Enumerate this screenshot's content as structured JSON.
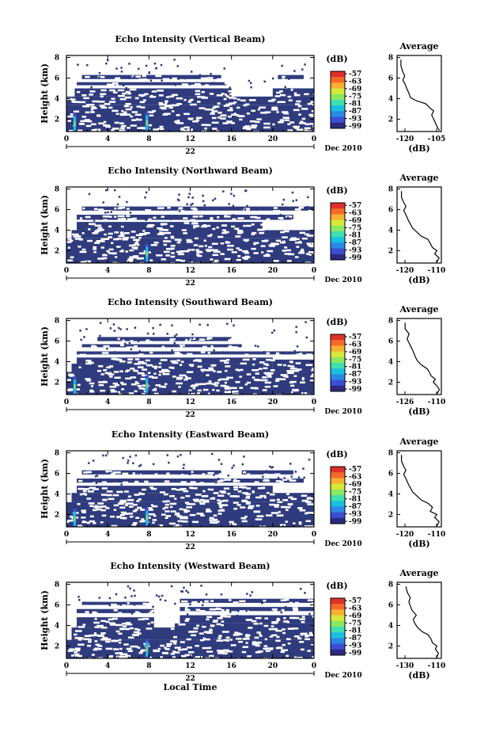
{
  "colors": {
    "echo_fill": "#2f3b7d",
    "colorbar": [
      "#2c2a7f",
      "#3b4fd1",
      "#2a88e8",
      "#18c0e0",
      "#3fe0b0",
      "#8be860",
      "#d8e83a",
      "#f8b030",
      "#f66a2a",
      "#e0302a"
    ]
  },
  "colorbar_unit": "(dB)",
  "colorbar_ticks": [
    "-57",
    "-63",
    "-69",
    "-75",
    "-81",
    "-87",
    "-93",
    "-99"
  ],
  "avg_title": "Average",
  "avg_unit": "(dB)",
  "height_label": "Height (km)",
  "date_label": "Dec 2010",
  "day_label": "22",
  "local_time_label": "Local Time",
  "chart_data": [
    {
      "type": "heatmap",
      "title": "Echo Intensity (Vertical Beam)",
      "ylabel": "Height (km)",
      "xlabel": "",
      "x_ticks": [
        "0",
        "4",
        "8",
        "12",
        "16",
        "20",
        "0"
      ],
      "xlim": [
        0,
        24
      ],
      "y_ticks": [
        "2",
        "4",
        "6",
        "8"
      ],
      "ylim": [
        0.8,
        8.2
      ],
      "grid": false,
      "layers": [
        {
          "t0": 0.0,
          "t1": 24.0,
          "h0": 0.8,
          "h1": 3.4
        },
        {
          "t0": 0.0,
          "t1": 24.0,
          "h0": 3.4,
          "h1": 4.2
        },
        {
          "t0": 0.8,
          "t1": 16.0,
          "h0": 4.2,
          "h1": 5.0
        },
        {
          "t0": 20.0,
          "t1": 24.0,
          "h0": 4.2,
          "h1": 5.0
        },
        {
          "t0": 1.0,
          "t1": 15.5,
          "h0": 5.3,
          "h1": 5.6
        },
        {
          "t0": 1.5,
          "t1": 15.0,
          "h0": 5.9,
          "h1": 6.3
        },
        {
          "t0": 20.5,
          "t1": 23.0,
          "h0": 5.9,
          "h1": 6.3
        }
      ],
      "hotspots": [
        {
          "t": 0.8,
          "h": 1.5
        },
        {
          "t": 7.8,
          "h": 1.6
        }
      ],
      "average": {
        "xlabel": "(dB)",
        "x_ticks": [
          "-120",
          "-105"
        ],
        "xlim": [
          -125,
          -102
        ],
        "y_ticks": [
          "2",
          "4",
          "6",
          "8"
        ],
        "ylim": [
          0.8,
          8.2
        ],
        "profile_x": [
          -103,
          -104,
          -105,
          -106,
          -107,
          -106,
          -108,
          -110,
          -115,
          -118,
          -119,
          -120,
          -121,
          -122,
          -121,
          -122,
          -123,
          -123
        ],
        "profile_y": [
          0.9,
          1.2,
          1.6,
          2.0,
          2.4,
          2.8,
          3.1,
          3.5,
          3.8,
          4.1,
          4.6,
          5.0,
          5.5,
          5.8,
          6.2,
          6.6,
          7.2,
          7.8
        ]
      }
    },
    {
      "type": "heatmap",
      "title": "Echo Intensity (Northward Beam)",
      "ylabel": "Height (km)",
      "xlabel": "",
      "x_ticks": [
        "0",
        "4",
        "8",
        "12",
        "16",
        "20",
        "0"
      ],
      "xlim": [
        0,
        24
      ],
      "y_ticks": [
        "2",
        "4",
        "6",
        "8"
      ],
      "ylim": [
        0.8,
        8.2
      ],
      "grid": false,
      "layers": [
        {
          "t0": 0.0,
          "t1": 24.0,
          "h0": 0.8,
          "h1": 3.2
        },
        {
          "t0": 0.5,
          "t1": 24.0,
          "h0": 3.2,
          "h1": 4.0
        },
        {
          "t0": 1.0,
          "t1": 19.0,
          "h0": 4.0,
          "h1": 4.8
        },
        {
          "t0": 1.0,
          "t1": 22.0,
          "h0": 5.0,
          "h1": 5.5
        },
        {
          "t0": 1.5,
          "t1": 24.0,
          "h0": 5.9,
          "h1": 6.3
        }
      ],
      "hotspots": [
        {
          "t": 7.8,
          "h": 1.6
        }
      ],
      "average": {
        "xlabel": "(dB)",
        "x_ticks": [
          "-120",
          "-110"
        ],
        "xlim": [
          -123,
          -103
        ],
        "y_ticks": [
          "2",
          "4",
          "6",
          "8"
        ],
        "ylim": [
          0.8,
          8.2
        ],
        "profile_x": [
          -105,
          -104,
          -106,
          -105,
          -107,
          -108,
          -109,
          -112,
          -114,
          -116,
          -117,
          -118,
          -119,
          -120,
          -119,
          -120,
          -121,
          -121
        ],
        "profile_y": [
          0.9,
          1.3,
          1.7,
          2.0,
          2.3,
          2.7,
          3.1,
          3.4,
          3.8,
          4.2,
          4.6,
          5.0,
          5.5,
          5.9,
          6.3,
          6.7,
          7.2,
          7.8
        ]
      }
    },
    {
      "type": "heatmap",
      "title": "Echo Intensity (Southward Beam)",
      "ylabel": "Height (km)",
      "xlabel": "",
      "x_ticks": [
        "0",
        "4",
        "8",
        "12",
        "16",
        "20",
        "0"
      ],
      "xlim": [
        0,
        24
      ],
      "y_ticks": [
        "2",
        "4",
        "6",
        "8"
      ],
      "ylim": [
        0.8,
        8.2
      ],
      "grid": false,
      "layers": [
        {
          "t0": 0.0,
          "t1": 24.0,
          "h0": 0.8,
          "h1": 3.0
        },
        {
          "t0": 0.5,
          "t1": 20.0,
          "h0": 3.0,
          "h1": 3.8
        },
        {
          "t0": 20.0,
          "t1": 24.0,
          "h0": 3.0,
          "h1": 4.2
        },
        {
          "t0": 1.0,
          "t1": 20.0,
          "h0": 3.8,
          "h1": 4.4
        },
        {
          "t0": 1.0,
          "t1": 24.0,
          "h0": 4.7,
          "h1": 5.0
        },
        {
          "t0": 1.5,
          "t1": 17.0,
          "h0": 5.4,
          "h1": 5.7
        },
        {
          "t0": 3.0,
          "t1": 16.0,
          "h0": 6.0,
          "h1": 6.4
        }
      ],
      "hotspots": [
        {
          "t": 0.8,
          "h": 1.5
        },
        {
          "t": 7.8,
          "h": 1.6
        }
      ],
      "average": {
        "xlabel": "(dB)",
        "x_ticks": [
          "-126",
          "-110"
        ],
        "xlim": [
          -128,
          -106
        ],
        "y_ticks": [
          "2",
          "4",
          "6",
          "8"
        ],
        "ylim": [
          0.8,
          8.2
        ],
        "profile_x": [
          -108,
          -107,
          -108,
          -110,
          -109,
          -111,
          -112,
          -113,
          -116,
          -118,
          -119,
          -120,
          -121,
          -122,
          -123,
          -122,
          -124,
          -124
        ],
        "profile_y": [
          0.9,
          1.3,
          1.6,
          2.0,
          2.3,
          2.6,
          3.0,
          3.3,
          3.7,
          4.1,
          4.5,
          5.0,
          5.4,
          5.8,
          6.2,
          6.7,
          7.2,
          7.8
        ]
      }
    },
    {
      "type": "heatmap",
      "title": "Echo Intensity (Eastward Beam)",
      "ylabel": "Height (km)",
      "xlabel": "",
      "x_ticks": [
        "0",
        "4",
        "8",
        "12",
        "16",
        "20",
        "0"
      ],
      "xlim": [
        0,
        24
      ],
      "y_ticks": [
        "2",
        "4",
        "6",
        "8"
      ],
      "ylim": [
        0.8,
        8.2
      ],
      "grid": false,
      "layers": [
        {
          "t0": 0.0,
          "t1": 24.0,
          "h0": 0.8,
          "h1": 3.2
        },
        {
          "t0": 0.5,
          "t1": 24.0,
          "h0": 3.2,
          "h1": 4.1
        },
        {
          "t0": 1.0,
          "t1": 20.0,
          "h0": 4.1,
          "h1": 4.8
        },
        {
          "t0": 1.0,
          "t1": 23.0,
          "h0": 5.1,
          "h1": 5.5
        },
        {
          "t0": 1.5,
          "t1": 15.0,
          "h0": 5.9,
          "h1": 6.3
        },
        {
          "t0": 17.0,
          "t1": 22.0,
          "h0": 5.9,
          "h1": 6.3
        }
      ],
      "hotspots": [
        {
          "t": 0.8,
          "h": 1.5
        },
        {
          "t": 7.8,
          "h": 1.6
        }
      ],
      "average": {
        "xlabel": "(dB)",
        "x_ticks": [
          "-120",
          "-110"
        ],
        "xlim": [
          -123,
          -103
        ],
        "y_ticks": [
          "2",
          "4",
          "6",
          "8"
        ],
        "ylim": [
          0.8,
          8.2
        ],
        "profile_x": [
          -105,
          -104,
          -106,
          -105,
          -108,
          -107,
          -109,
          -112,
          -114,
          -116,
          -117,
          -118,
          -119,
          -120,
          -119,
          -120,
          -121,
          -121
        ],
        "profile_y": [
          0.9,
          1.3,
          1.7,
          2.0,
          2.3,
          2.7,
          3.1,
          3.4,
          3.8,
          4.2,
          4.6,
          5.0,
          5.5,
          5.9,
          6.3,
          6.7,
          7.2,
          7.8
        ]
      }
    },
    {
      "type": "heatmap",
      "title": "Echo Intensity (Westward Beam)",
      "ylabel": "Height (km)",
      "xlabel": "Local Time",
      "x_ticks": [
        "0",
        "4",
        "8",
        "12",
        "16",
        "20",
        "0"
      ],
      "xlim": [
        0,
        24
      ],
      "y_ticks": [
        "2",
        "4",
        "6",
        "8"
      ],
      "ylim": [
        0.8,
        8.2
      ],
      "grid": false,
      "layers": [
        {
          "t0": 0.0,
          "t1": 24.0,
          "h0": 0.8,
          "h1": 2.6
        },
        {
          "t0": 0.5,
          "t1": 10.5,
          "h0": 2.6,
          "h1": 3.8
        },
        {
          "t0": 10.5,
          "t1": 24.0,
          "h0": 2.6,
          "h1": 4.2
        },
        {
          "t0": 1.0,
          "t1": 8.5,
          "h0": 3.8,
          "h1": 4.8
        },
        {
          "t0": 11.0,
          "t1": 24.0,
          "h0": 4.2,
          "h1": 5.0
        },
        {
          "t0": 1.0,
          "t1": 8.5,
          "h0": 5.2,
          "h1": 5.6
        },
        {
          "t0": 11.0,
          "t1": 24.0,
          "h0": 5.4,
          "h1": 5.8
        },
        {
          "t0": 1.5,
          "t1": 8.0,
          "h0": 6.0,
          "h1": 6.3
        },
        {
          "t0": 11.0,
          "t1": 24.0,
          "h0": 6.2,
          "h1": 6.6
        }
      ],
      "hotspots": [
        {
          "t": 7.8,
          "h": 1.6
        }
      ],
      "average": {
        "xlabel": "(dB)",
        "x_ticks": [
          "-130",
          "-110"
        ],
        "xlim": [
          -133,
          -103
        ],
        "y_ticks": [
          "2",
          "4",
          "6",
          "8"
        ],
        "ylim": [
          0.8,
          8.2
        ],
        "profile_x": [
          -106,
          -105,
          -107,
          -106,
          -109,
          -110,
          -112,
          -116,
          -119,
          -121,
          -122,
          -120,
          -123,
          -124,
          -125,
          -124,
          -126,
          -127
        ],
        "profile_y": [
          0.9,
          1.3,
          1.7,
          2.0,
          2.3,
          2.7,
          3.1,
          3.4,
          3.8,
          4.2,
          4.6,
          5.0,
          5.5,
          5.9,
          6.3,
          6.7,
          7.2,
          7.8
        ]
      }
    }
  ]
}
